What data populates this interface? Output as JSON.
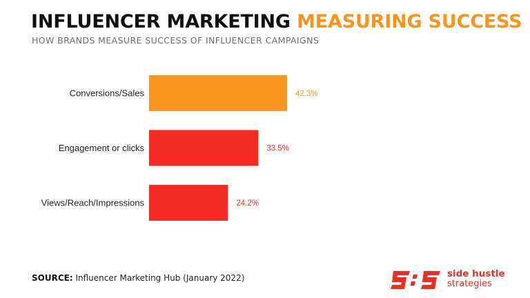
{
  "header": {
    "title_main": "INFLUENCER MARKETING",
    "title_accent": "MEASURING SUCCESS",
    "subtitle": "HOW BRANDS MEASURE SUCCESS OF INFLUENCER CAMPAIGNS"
  },
  "chart_data": {
    "type": "bar",
    "orientation": "horizontal",
    "categories": [
      "Conversions/Sales",
      "Engagement or clicks",
      "Views/Reach/Impressions"
    ],
    "values": [
      42.3,
      33.5,
      24.2
    ],
    "value_labels": [
      "42.3%",
      "33.5%",
      "24.2%"
    ],
    "colors": [
      "#f7941d",
      "#f42a22",
      "#f42a22"
    ],
    "title": "",
    "xlabel": "",
    "ylabel": "",
    "grid": false,
    "legend": "none"
  },
  "footer": {
    "source_label": "SOURCE:",
    "source_text": "Influencer Marketing Hub (January 2022)"
  },
  "logo": {
    "line1": "side hustle",
    "line2": "strategies",
    "color": "#ef2b23"
  }
}
